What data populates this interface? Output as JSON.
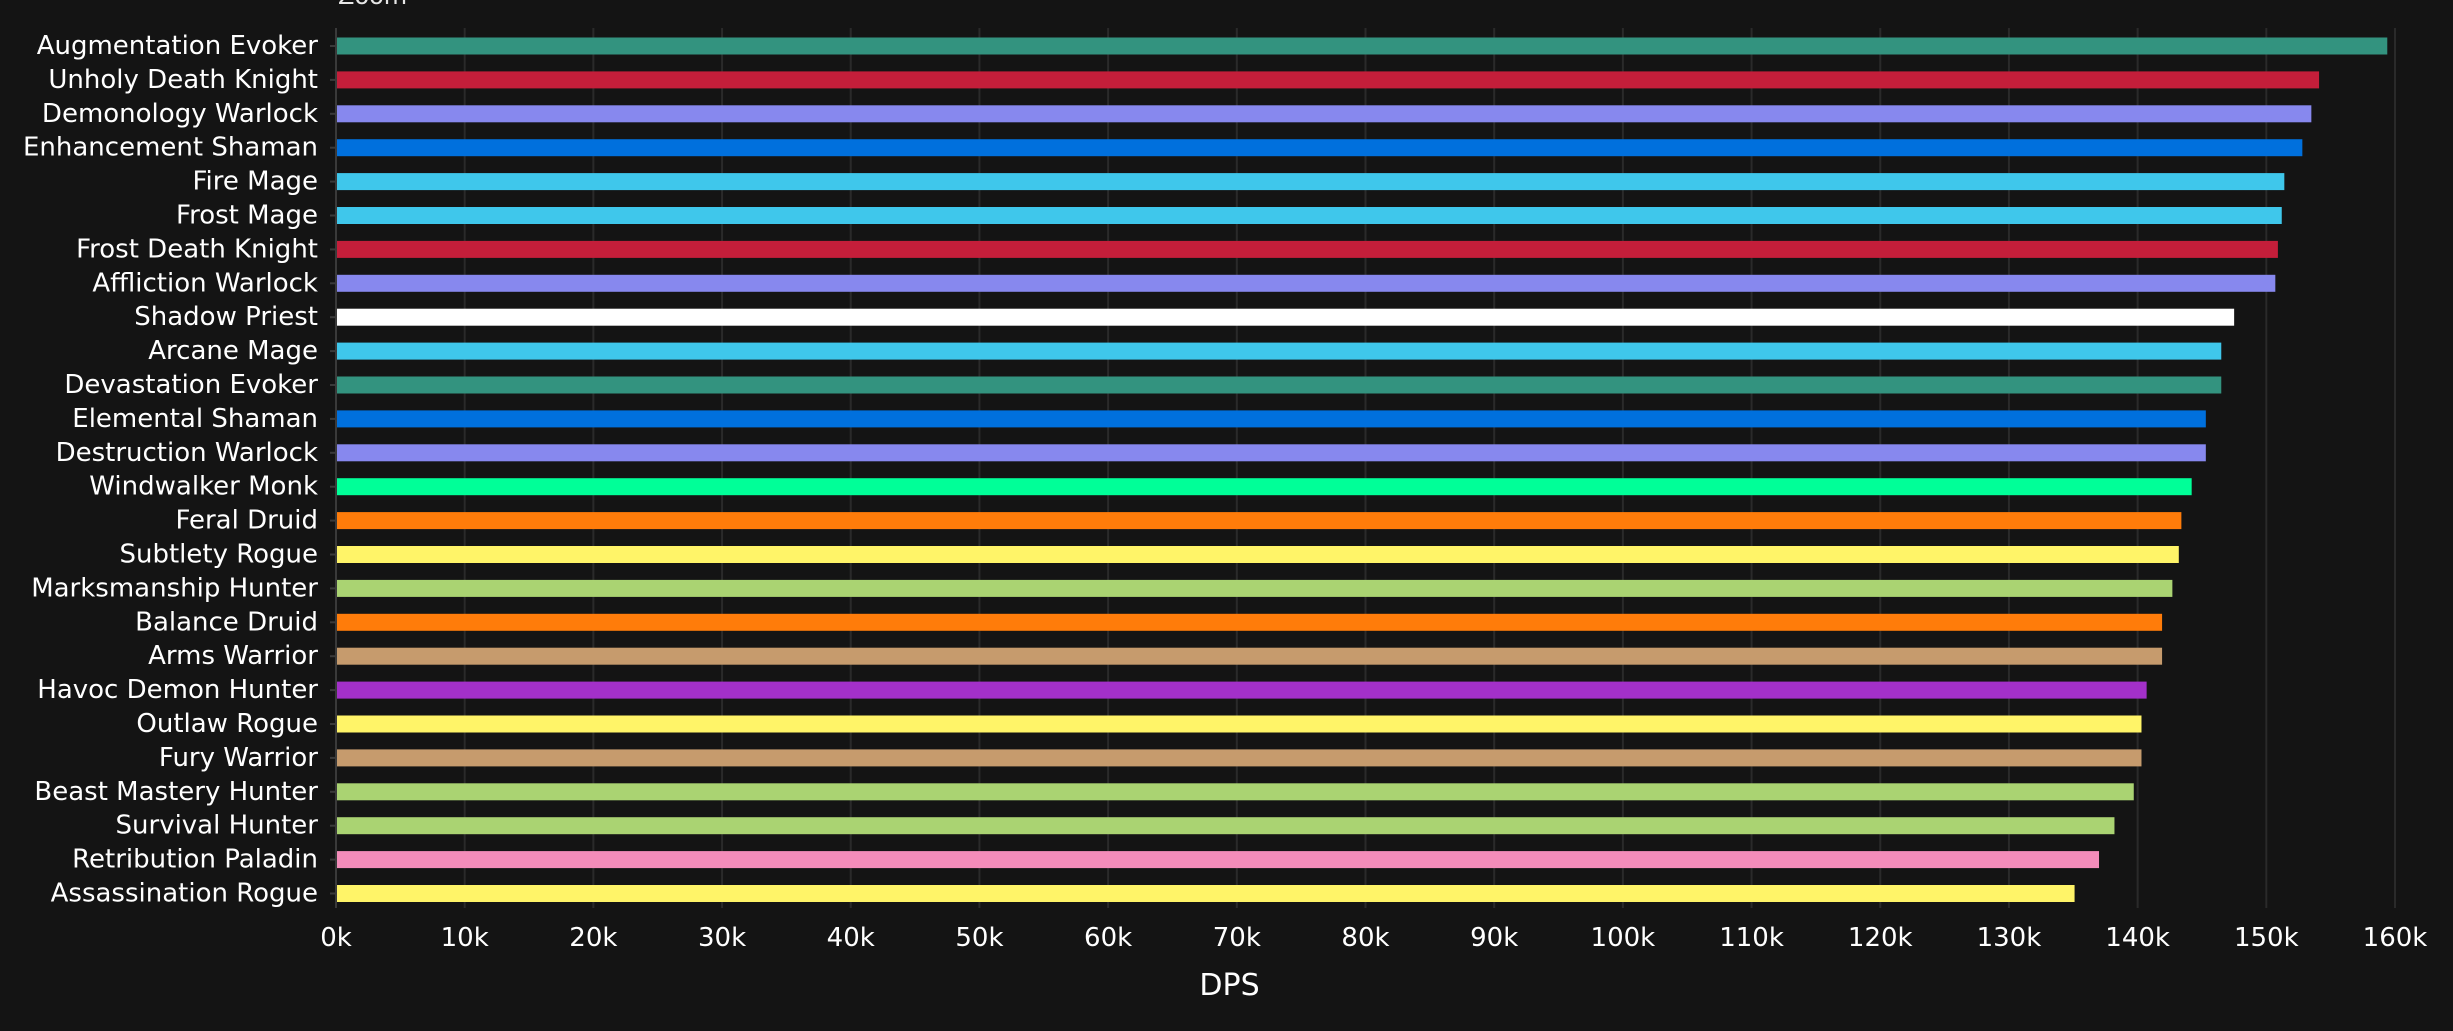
{
  "zoom_label": "Zoom",
  "chart_data": {
    "type": "bar",
    "orientation": "horizontal",
    "xlabel": "DPS",
    "ylabel": "",
    "xlim": [
      0,
      160000
    ],
    "x_ticks": [
      0,
      10000,
      20000,
      30000,
      40000,
      50000,
      60000,
      70000,
      80000,
      90000,
      100000,
      110000,
      120000,
      130000,
      140000,
      150000,
      160000
    ],
    "x_tick_labels": [
      "0k",
      "10k",
      "20k",
      "30k",
      "40k",
      "50k",
      "60k",
      "70k",
      "80k",
      "90k",
      "100k",
      "110k",
      "120k",
      "130k",
      "140k",
      "150k",
      "160k"
    ],
    "grid": "vertical",
    "background": "#141414",
    "gridline_color": "#2a2a2a",
    "categories": [
      "Augmentation Evoker",
      "Unholy Death Knight",
      "Demonology Warlock",
      "Enhancement Shaman",
      "Fire Mage",
      "Frost Mage",
      "Frost Death Knight",
      "Affliction Warlock",
      "Shadow Priest",
      "Arcane Mage",
      "Devastation Evoker",
      "Elemental Shaman",
      "Destruction Warlock",
      "Windwalker Monk",
      "Feral Druid",
      "Subtlety Rogue",
      "Marksmanship Hunter",
      "Balance Druid",
      "Arms Warrior",
      "Havoc Demon Hunter",
      "Outlaw Rogue",
      "Fury Warrior",
      "Beast Mastery Hunter",
      "Survival Hunter",
      "Retribution Paladin",
      "Assassination Rogue"
    ],
    "values": [
      159400,
      154100,
      153500,
      152800,
      151400,
      151200,
      150900,
      150700,
      147500,
      146500,
      146500,
      145300,
      145300,
      144200,
      143400,
      143200,
      142700,
      141900,
      141900,
      140700,
      140300,
      140300,
      139700,
      138200,
      137000,
      135100
    ],
    "colors": [
      "#33937F",
      "#C41E3A",
      "#8788EE",
      "#0070DD",
      "#3FC7EB",
      "#3FC7EB",
      "#C41E3A",
      "#8788EE",
      "#FFFFFF",
      "#3FC7EB",
      "#33937F",
      "#0070DD",
      "#8788EE",
      "#00FF98",
      "#FF7C0A",
      "#FFF468",
      "#AAD372",
      "#FF7C0A",
      "#C69B6D",
      "#A330C9",
      "#FFF468",
      "#C69B6D",
      "#AAD372",
      "#AAD372",
      "#F48CBA",
      "#FFF468"
    ]
  }
}
